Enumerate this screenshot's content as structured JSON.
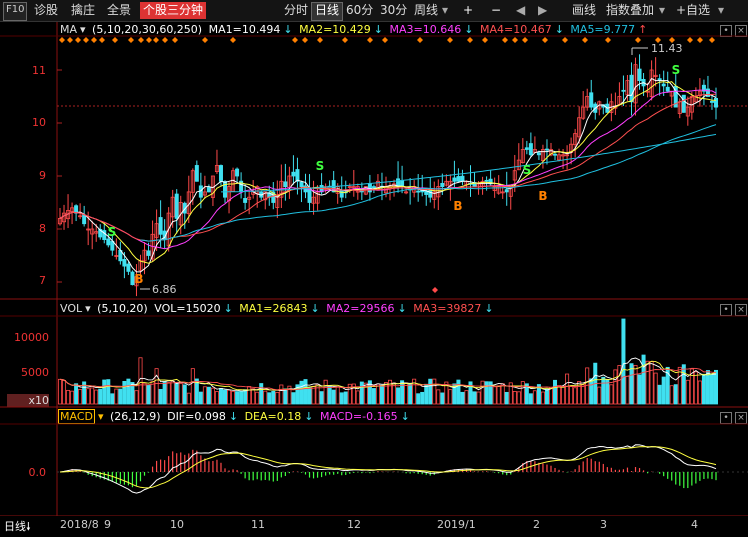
{
  "toolbar": {
    "f10": "F10",
    "diagnose": "诊股",
    "select": "擒庄",
    "panorama": "全景",
    "stock_tab": "个股三分钟",
    "period_intraday": "分时",
    "period_daily": "日线",
    "period_60": "60分",
    "period_30": "30分",
    "period_weekly": "周线",
    "line_draw": "画线",
    "index_overlay": "指数叠加",
    "watchlist": "+自选"
  },
  "ma_header": {
    "name": "MA",
    "params": "(5,10,20,30,60,250)",
    "ma1": "MA1=10.494",
    "ma2": "MA2=10.429",
    "ma3": "MA3=10.646",
    "ma4": "MA4=10.467",
    "ma5": "MA5=9.777"
  },
  "vol_header": {
    "name": "VOL",
    "params": "(5,10,20)",
    "vol": "VOL=15020",
    "ma1": "MA1=26843",
    "ma2": "MA2=29566",
    "ma3": "MA3=39827"
  },
  "macd_header": {
    "name": "MACD",
    "params": "(26,12,9)",
    "dif": "DIF=0.098",
    "dea": "DEA=0.18",
    "macd": "MACD=-0.165"
  },
  "price_axis": [
    "11",
    "10",
    "9",
    "8",
    "7"
  ],
  "vol_axis": [
    "10000",
    "5000",
    "x10"
  ],
  "macd_axis": [
    "0.0"
  ],
  "annotations": {
    "high": "11.43",
    "low": "6.86"
  },
  "x_axis": {
    "period": "日线",
    "labels": [
      "2018/8",
      "9",
      "10",
      "11",
      "12",
      "2019/1",
      "2",
      "3",
      "4"
    ]
  },
  "colors": {
    "up": "#ff4a4a",
    "down": "#40e0f0",
    "ma1": "#ffffff",
    "ma2": "#ffff40",
    "ma3": "#ff40ff",
    "ma4": "#ff5050",
    "ma5": "#20c0e0",
    "buy": "#ff8000",
    "sell": "#40ff40"
  },
  "chart_data": {
    "type": "candlestick",
    "title": "",
    "ylim": [
      6.7,
      11.5
    ],
    "signals": {
      "buy": "B",
      "sell": "S"
    },
    "closes": [
      8.2,
      8.3,
      8.35,
      8.4,
      8.3,
      8.25,
      8.1,
      8.0,
      8.0,
      7.95,
      7.85,
      7.8,
      7.7,
      7.6,
      7.5,
      7.4,
      7.3,
      7.2,
      6.95,
      7.1,
      7.4,
      7.6,
      7.5,
      7.9,
      8.1,
      7.9,
      7.8,
      8.3,
      8.6,
      8.2,
      8.5,
      8.3,
      8.7,
      9.1,
      8.9,
      8.6,
      8.7,
      8.7,
      9.0,
      9.2,
      8.9,
      8.6,
      8.8,
      9.1,
      9.0,
      8.7,
      8.5,
      8.6,
      8.7,
      8.8,
      8.6,
      8.7,
      8.6,
      8.5,
      8.6,
      8.9,
      8.8,
      9.0,
      9.0,
      8.9,
      8.8,
      8.7,
      8.5,
      8.6,
      8.7,
      8.7,
      8.8,
      8.8,
      8.7,
      8.8,
      8.6,
      8.7,
      8.8,
      8.8,
      8.8,
      8.7,
      8.8,
      8.7,
      8.8,
      8.9,
      8.8,
      8.8,
      8.8,
      8.85,
      8.8,
      8.8,
      8.7,
      8.75,
      8.8,
      8.7,
      8.7,
      8.65,
      8.6,
      8.7,
      8.8,
      8.8,
      8.9,
      8.9,
      8.9,
      8.9,
      8.9,
      8.9,
      8.85,
      8.8,
      8.85,
      8.9,
      8.9,
      8.85,
      8.8,
      8.8,
      8.7,
      8.7,
      8.8,
      9.1,
      9.3,
      9.5,
      9.5,
      9.4,
      9.5,
      9.4,
      9.5,
      9.5,
      9.5,
      9.4,
      9.4,
      9.4,
      9.4,
      9.6,
      9.8,
      10.1,
      10.3,
      10.5,
      10.3,
      10.2,
      10.4,
      10.3,
      10.2,
      10.4,
      10.3,
      10.5,
      10.6,
      10.8,
      10.4,
      11.1,
      10.8,
      10.7,
      10.6,
      11.0,
      10.9,
      10.8,
      10.7,
      10.6,
      10.6,
      10.3,
      10.4,
      10.2,
      10.3,
      10.5,
      10.5,
      10.6,
      10.6,
      10.5,
      10.4,
      10.3
    ]
  }
}
